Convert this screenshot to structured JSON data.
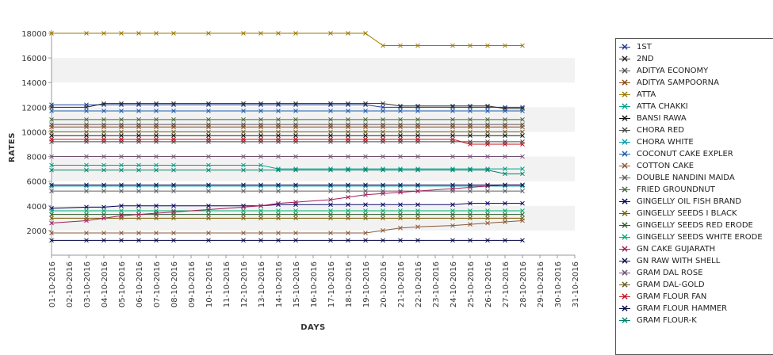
{
  "chart_data": {
    "type": "line",
    "xlabel": "DAYS",
    "ylabel": "RATES",
    "ylim": [
      0,
      18000
    ],
    "yticks": [
      2000,
      4000,
      6000,
      8000,
      10000,
      12000,
      14000,
      16000,
      18000
    ],
    "x": [
      "01-10-2016",
      "02-10-2016",
      "03-10-2016",
      "04-10-2016",
      "05-10-2016",
      "06-10-2016",
      "07-10-2016",
      "08-10-2016",
      "09-10-2016",
      "10-10-2016",
      "11-10-2016",
      "12-10-2016",
      "13-10-2016",
      "14-10-2016",
      "15-10-2016",
      "16-10-2016",
      "17-10-2016",
      "18-10-2016",
      "19-10-2016",
      "20-10-2016",
      "21-10-2016",
      "22-10-2016",
      "23-10-2016",
      "24-10-2016",
      "25-10-2016",
      "26-10-2016",
      "27-10-2016",
      "28-10-2016",
      "29-10-2016",
      "30-10-2016",
      "31-10-2016"
    ],
    "grid": "horizontal bands",
    "legend_position": "right",
    "series": [
      {
        "name": "1ST",
        "color": "#1f3b99",
        "values": [
          12200,
          null,
          12200,
          12200,
          12200,
          12200,
          12200,
          12200,
          null,
          12200,
          null,
          12200,
          12200,
          12200,
          12200,
          null,
          12200,
          12200,
          12200,
          12000,
          12000,
          12000,
          null,
          12000,
          12000,
          12000,
          12000,
          12000,
          null,
          null,
          null
        ]
      },
      {
        "name": "2ND",
        "color": "#2a2a2a",
        "values": [
          12000,
          null,
          12000,
          12300,
          12300,
          12300,
          12300,
          12300,
          null,
          12300,
          null,
          12300,
          12300,
          12300,
          12300,
          null,
          12300,
          12300,
          12300,
          12300,
          12100,
          12100,
          null,
          12100,
          12100,
          12100,
          11900,
          11900,
          null,
          null,
          null
        ]
      },
      {
        "name": "ADITYA ECONOMY",
        "color": "#555555",
        "values": [
          10600,
          null,
          10600,
          10600,
          10600,
          10600,
          10600,
          10600,
          null,
          10600,
          null,
          10600,
          10600,
          10600,
          10600,
          null,
          10600,
          10600,
          10600,
          10600,
          10600,
          10600,
          null,
          10600,
          10600,
          10600,
          10600,
          10600,
          null,
          null,
          null
        ]
      },
      {
        "name": "ADITYA SAMPOORNA",
        "color": "#8b4513",
        "values": [
          10400,
          null,
          10400,
          10400,
          10400,
          10400,
          10400,
          10400,
          null,
          10400,
          null,
          10400,
          10400,
          10400,
          10400,
          null,
          10400,
          10400,
          10400,
          10400,
          10400,
          10400,
          null,
          10400,
          10400,
          10400,
          10400,
          10400,
          null,
          null,
          null
        ]
      },
      {
        "name": "ATTA",
        "color": "#9a7a00",
        "values": [
          18000,
          null,
          18000,
          18000,
          18000,
          18000,
          18000,
          18000,
          null,
          18000,
          null,
          18000,
          18000,
          18000,
          18000,
          null,
          18000,
          18000,
          18000,
          17000,
          17000,
          17000,
          null,
          17000,
          17000,
          17000,
          17000,
          17000,
          null,
          null,
          null
        ]
      },
      {
        "name": "ATTA CHAKKI",
        "color": "#00a08a",
        "values": [
          7300,
          null,
          7300,
          7300,
          7300,
          7300,
          7300,
          7300,
          null,
          7300,
          null,
          7300,
          7300,
          7000,
          7000,
          null,
          7000,
          7000,
          7000,
          7000,
          7000,
          7000,
          null,
          7000,
          7000,
          7000,
          7000,
          7000,
          null,
          null,
          null
        ]
      },
      {
        "name": "BANSI RAWA",
        "color": "#111111",
        "values": [
          9700,
          null,
          9700,
          9700,
          9700,
          9700,
          9700,
          9700,
          null,
          9700,
          null,
          9700,
          9700,
          9700,
          9700,
          null,
          9700,
          9700,
          9700,
          9700,
          9700,
          9700,
          null,
          9700,
          9700,
          9700,
          9700,
          9700,
          null,
          null,
          null
        ]
      },
      {
        "name": "CHORA RED",
        "color": "#4a4a4a",
        "values": [
          9200,
          null,
          9200,
          9200,
          9200,
          9200,
          9200,
          9200,
          null,
          9200,
          null,
          9200,
          9200,
          9200,
          9200,
          null,
          9200,
          9200,
          9200,
          9200,
          9200,
          9200,
          null,
          9200,
          9200,
          9200,
          9200,
          9200,
          null,
          null,
          null
        ]
      },
      {
        "name": "CHORA WHITE",
        "color": "#00a0b0",
        "values": [
          5600,
          null,
          5600,
          5600,
          5600,
          5600,
          5600,
          5600,
          null,
          5600,
          null,
          5600,
          5600,
          5600,
          5600,
          null,
          5600,
          5600,
          5600,
          5600,
          5600,
          5600,
          null,
          5600,
          5600,
          5600,
          5600,
          5600,
          null,
          null,
          null
        ]
      },
      {
        "name": "COCONUT CAKE EXPLER",
        "color": "#2060b0",
        "values": [
          11700,
          null,
          11700,
          11700,
          11700,
          11700,
          11700,
          11700,
          null,
          11700,
          null,
          11700,
          11700,
          11700,
          11700,
          null,
          11700,
          11700,
          11700,
          11700,
          11700,
          11700,
          null,
          11700,
          11700,
          11700,
          11700,
          11700,
          null,
          null,
          null
        ]
      },
      {
        "name": "COTTON CAKE",
        "color": "#8a5a3a",
        "values": [
          1800,
          null,
          1800,
          1800,
          1800,
          1800,
          1800,
          1800,
          null,
          1800,
          null,
          1800,
          1800,
          1800,
          1800,
          null,
          1800,
          1800,
          1800,
          2000,
          2200,
          2300,
          null,
          2400,
          2500,
          2600,
          2700,
          2800,
          null,
          null,
          null
        ]
      },
      {
        "name": "DOUBLE NANDINI MAIDA",
        "color": "#606060",
        "values": [
          5200,
          null,
          5200,
          5200,
          5200,
          5200,
          5200,
          5200,
          null,
          5200,
          null,
          5200,
          5200,
          5200,
          5200,
          null,
          5200,
          5200,
          5200,
          5200,
          5200,
          5200,
          null,
          5200,
          5200,
          5200,
          5200,
          5200,
          null,
          null,
          null
        ]
      },
      {
        "name": "FRIED GROUNDNUT",
        "color": "#4a6a3a",
        "values": [
          11000,
          null,
          11000,
          11000,
          11000,
          11000,
          11000,
          11000,
          null,
          11000,
          null,
          11000,
          11000,
          11000,
          11000,
          null,
          11000,
          11000,
          11000,
          11000,
          11000,
          11000,
          null,
          11000,
          11000,
          11000,
          11000,
          11000,
          null,
          null,
          null
        ]
      },
      {
        "name": "GINGELLY OIL FISH BRAND",
        "color": "#000060",
        "values": [
          3800,
          null,
          3900,
          3900,
          4000,
          4000,
          4000,
          4000,
          null,
          4000,
          null,
          4000,
          4000,
          4100,
          4100,
          null,
          4100,
          4100,
          4100,
          4100,
          4100,
          4100,
          null,
          4100,
          4200,
          4200,
          4200,
          4200,
          null,
          null,
          null
        ]
      },
      {
        "name": "GINGELLY SEEDS I BLACK",
        "color": "#7a5a00",
        "values": [
          3000,
          null,
          3000,
          3000,
          3000,
          3000,
          3000,
          3000,
          null,
          3000,
          null,
          3000,
          3000,
          3000,
          3000,
          null,
          3000,
          3000,
          3000,
          3000,
          3000,
          3000,
          null,
          3000,
          3000,
          3000,
          3000,
          3000,
          null,
          null,
          null
        ]
      },
      {
        "name": "GINGELLY SEEDS RED ERODE",
        "color": "#2d5a2d",
        "values": [
          3300,
          null,
          3300,
          3300,
          3300,
          3300,
          3300,
          3300,
          null,
          3300,
          null,
          3300,
          3300,
          3300,
          3300,
          null,
          3300,
          3300,
          3300,
          3300,
          3300,
          3300,
          null,
          3300,
          3300,
          3300,
          3300,
          3300,
          null,
          null,
          null
        ]
      },
      {
        "name": "GINGELLY SEEDS WHITE ERODE",
        "color": "#00b070",
        "values": [
          3600,
          null,
          3600,
          3600,
          3600,
          3600,
          3600,
          3600,
          null,
          3600,
          null,
          3600,
          3600,
          3600,
          3600,
          null,
          3600,
          3600,
          3600,
          3600,
          3600,
          3600,
          null,
          3600,
          3600,
          3600,
          3600,
          3600,
          null,
          null,
          null
        ]
      },
      {
        "name": "GN CAKE GUJARATH",
        "color": "#a0205a",
        "values": [
          2600,
          null,
          2800,
          3000,
          3200,
          3300,
          3400,
          3500,
          null,
          3700,
          null,
          3900,
          4000,
          4200,
          4300,
          null,
          4500,
          4700,
          4900,
          5000,
          5100,
          5200,
          null,
          5400,
          5500,
          5600,
          5700,
          5700,
          null,
          null,
          null
        ]
      },
      {
        "name": "GN RAW WITH SHELL",
        "color": "#101050",
        "values": [
          5700,
          null,
          5700,
          5700,
          5700,
          5700,
          5700,
          5700,
          null,
          5700,
          null,
          5700,
          5700,
          5700,
          5700,
          null,
          5700,
          5700,
          5700,
          5700,
          5700,
          5700,
          null,
          5700,
          5700,
          5700,
          5700,
          5700,
          null,
          null,
          null
        ]
      },
      {
        "name": "GRAM DAL ROSE",
        "color": "#705070",
        "values": [
          8000,
          null,
          8000,
          8000,
          8000,
          8000,
          8000,
          8000,
          null,
          8000,
          null,
          8000,
          8000,
          8000,
          8000,
          null,
          8000,
          8000,
          8000,
          8000,
          8000,
          8000,
          null,
          8000,
          8000,
          8000,
          8000,
          8000,
          null,
          null,
          null
        ]
      },
      {
        "name": "GRAM DAL-GOLD",
        "color": "#6a5a20",
        "values": [
          10000,
          null,
          10000,
          10000,
          10000,
          10000,
          10000,
          10000,
          null,
          10000,
          null,
          10000,
          10000,
          10000,
          10000,
          null,
          10000,
          10000,
          10000,
          10000,
          10000,
          10000,
          null,
          10000,
          10000,
          10000,
          10000,
          10000,
          null,
          null,
          null
        ]
      },
      {
        "name": "GRAM FLOUR FAN",
        "color": "#c01020",
        "values": [
          9400,
          null,
          9400,
          9400,
          9400,
          9400,
          9400,
          9400,
          null,
          9400,
          null,
          9400,
          9400,
          9400,
          9400,
          null,
          9400,
          9400,
          9400,
          9400,
          9400,
          9400,
          null,
          9400,
          9000,
          9000,
          9000,
          9000,
          null,
          null,
          null
        ]
      },
      {
        "name": "GRAM FLOUR HAMMER",
        "color": "#000040",
        "values": [
          1200,
          null,
          1200,
          1200,
          1200,
          1200,
          1200,
          1200,
          null,
          1200,
          null,
          1200,
          1200,
          1200,
          1200,
          null,
          1200,
          1200,
          1200,
          1200,
          1200,
          1200,
          null,
          1200,
          1200,
          1200,
          1200,
          1200,
          null,
          null,
          null
        ]
      },
      {
        "name": "GRAM FLOUR-K",
        "color": "#00806a",
        "values": [
          6900,
          null,
          6900,
          6900,
          6900,
          6900,
          6900,
          6900,
          null,
          6900,
          null,
          6900,
          6900,
          6900,
          6900,
          null,
          6900,
          6900,
          6900,
          6900,
          6900,
          6900,
          null,
          6900,
          6900,
          6900,
          6600,
          6600,
          null,
          null,
          null
        ]
      }
    ]
  }
}
